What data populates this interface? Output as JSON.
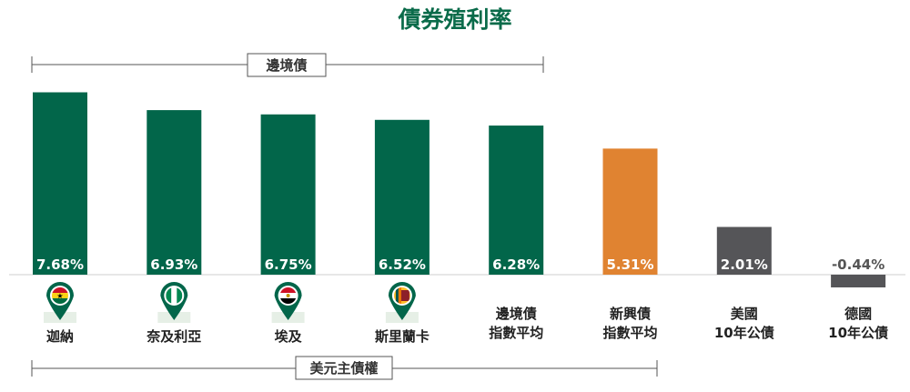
{
  "chart_data": {
    "type": "bar",
    "title": "債券殖利率",
    "categories": [
      [
        "迦納"
      ],
      [
        "奈及利亞"
      ],
      [
        "埃及"
      ],
      [
        "斯里蘭卡"
      ],
      [
        "邊境債",
        "指數平均"
      ],
      [
        "新興債",
        "指數平均"
      ],
      [
        "美國",
        "10年公債"
      ],
      [
        "德國",
        "10年公債"
      ]
    ],
    "values": [
      7.68,
      6.93,
      6.75,
      6.52,
      6.28,
      5.31,
      2.01,
      -0.44
    ],
    "value_labels": [
      "7.68%",
      "6.93%",
      "6.75%",
      "6.52%",
      "6.28%",
      "5.31%",
      "2.01%",
      "-0.44%"
    ],
    "bar_colors": [
      "#02664a",
      "#02664a",
      "#02664a",
      "#02664a",
      "#02664a",
      "#e08331",
      "#555558",
      "#555558"
    ],
    "flag_icons": [
      "ghana-flag-icon",
      "nigeria-flag-icon",
      "egypt-flag-icon",
      "sri-lanka-flag-icon",
      "",
      "",
      "",
      ""
    ],
    "xlabel": "",
    "ylabel": "",
    "ylim": [
      -0.6,
      7.8
    ],
    "grid": false
  },
  "brackets": {
    "frontier": {
      "label": "邊境債"
    },
    "usd": {
      "label": "美元主債權"
    }
  },
  "colors": {
    "title": "#0a6b4a",
    "frontier": "#02664a",
    "emerging": "#e08331",
    "developed": "#555558"
  }
}
